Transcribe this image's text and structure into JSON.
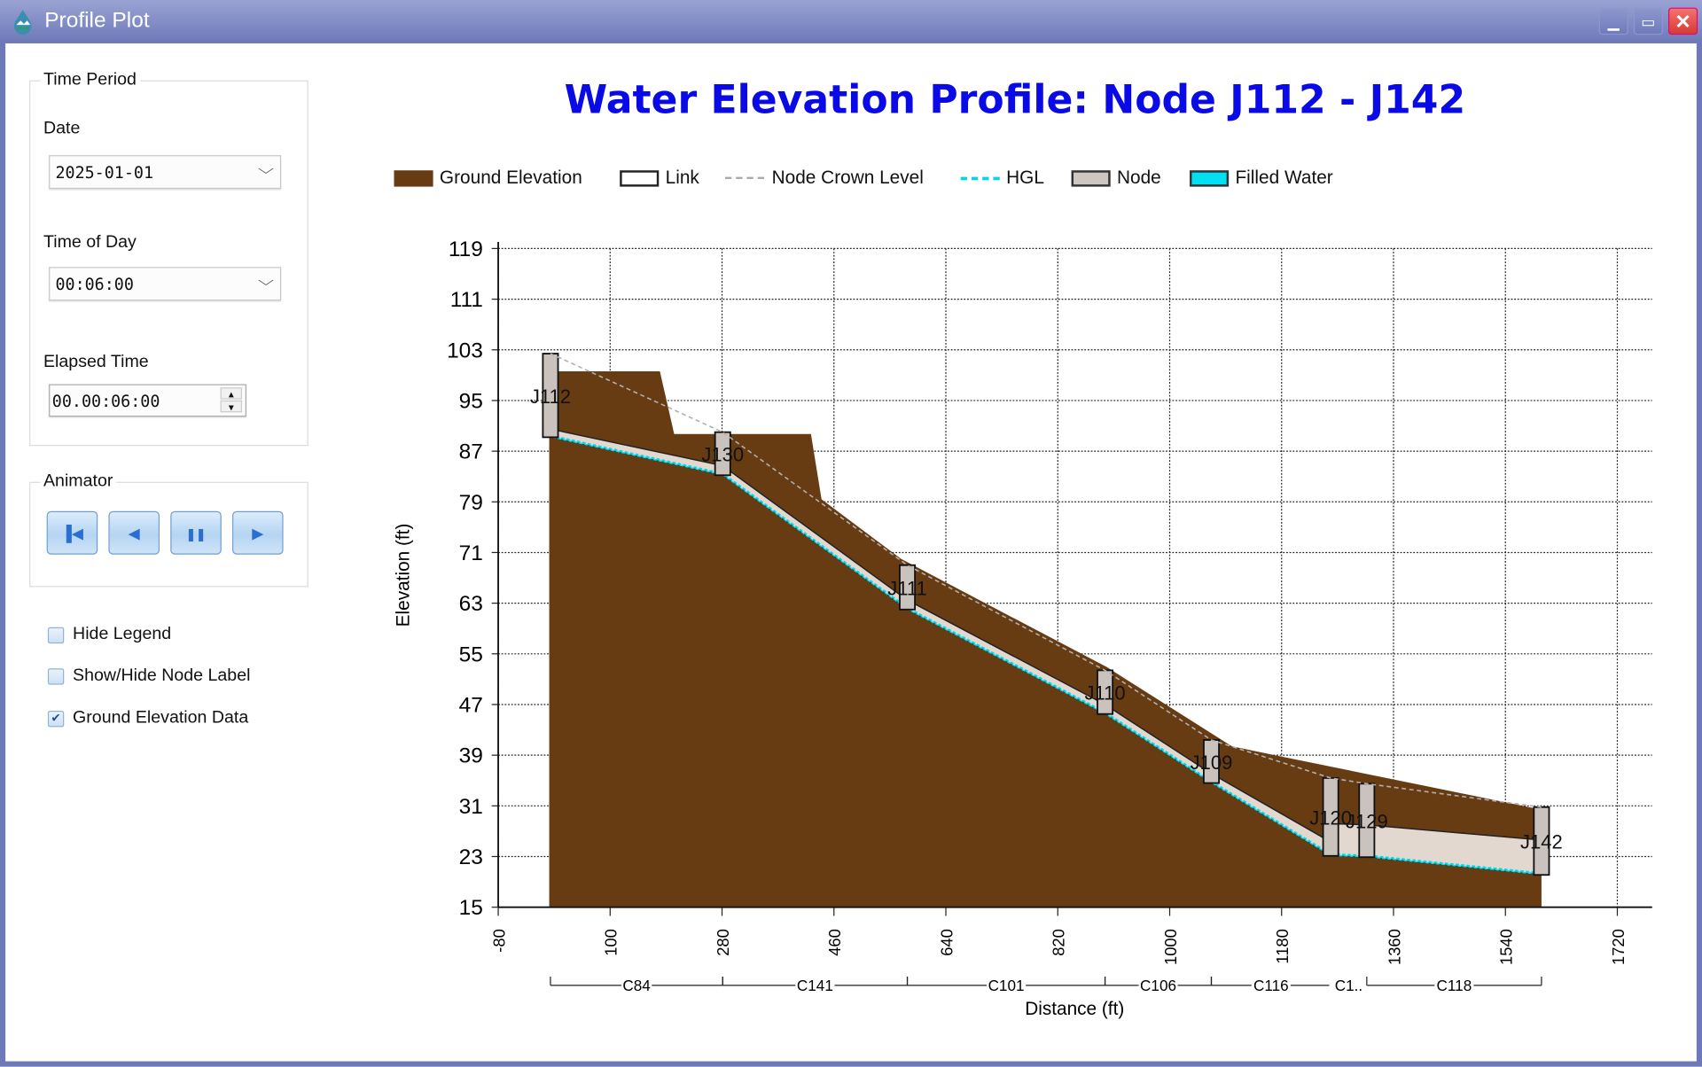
{
  "window": {
    "title": "Profile Plot",
    "minimize_icon": "minimize-icon",
    "maximize_icon": "maximize-icon",
    "close_icon": "close-icon"
  },
  "time_period": {
    "group_label": "Time Period",
    "date_label": "Date",
    "date_value": "2025-01-01",
    "time_of_day_label": "Time of Day",
    "time_of_day_value": "00:06:00",
    "elapsed_label": "Elapsed Time",
    "elapsed_value": "00.00:06:00"
  },
  "animator": {
    "group_label": "Animator",
    "buttons": [
      "skip-to-start",
      "step-back",
      "pause",
      "play"
    ]
  },
  "options": [
    {
      "label": "Hide Legend",
      "checked": false
    },
    {
      "label": "Show/Hide Node Label",
      "checked": false
    },
    {
      "label": "Ground Elevation Data",
      "checked": true
    }
  ],
  "colors": {
    "ground": "#673c13",
    "link": "#e2d8d0",
    "node": "#c9c2bd",
    "hgl": "#00d8e8",
    "crown": "#b0b0b0",
    "title": "#0a0ae6"
  },
  "chart_data": {
    "type": "area",
    "title": "Water Elevation Profile: Node J112 - J142",
    "xlabel": "Distance (ft)",
    "ylabel": "Elevation (ft)",
    "xlim": [
      -80,
      1720
    ],
    "ylim": [
      15,
      119
    ],
    "xticks": [
      -80,
      100,
      280,
      460,
      640,
      820,
      1000,
      1180,
      1360,
      1540,
      1720
    ],
    "yticks": [
      15,
      23,
      31,
      39,
      47,
      55,
      63,
      71,
      79,
      87,
      95,
      103,
      111,
      119
    ],
    "grid": true,
    "legend_position": "top",
    "legend": [
      "Ground Elevation",
      "Link",
      "Node Crown Level",
      "HGL",
      "Node",
      "Filled Water"
    ],
    "nodes": [
      {
        "name": "J112",
        "x": 4,
        "top": 102.4,
        "invert": 89.2
      },
      {
        "name": "J130",
        "x": 281,
        "top": 90.0,
        "invert": 83.2
      },
      {
        "name": "J111",
        "x": 578,
        "top": 69.0,
        "invert": 62.0
      },
      {
        "name": "J110",
        "x": 896,
        "top": 52.4,
        "invert": 45.5
      },
      {
        "name": "J109",
        "x": 1067,
        "top": 41.4,
        "invert": 34.6
      },
      {
        "name": "J120",
        "x": 1259,
        "top": 35.4,
        "invert": 23.1
      },
      {
        "name": "J129",
        "x": 1317,
        "top": 34.5,
        "invert": 22.9
      },
      {
        "name": "J142",
        "x": 1598,
        "top": 30.8,
        "invert": 20.1
      }
    ],
    "links": [
      {
        "name": "C84",
        "from": 0,
        "to": 1,
        "invert": [
          89.2,
          83.2
        ],
        "crown": [
          90.5,
          84.7
        ]
      },
      {
        "name": "C141",
        "from": 1,
        "to": 2,
        "invert": [
          83.2,
          62.0
        ],
        "crown": [
          84.7,
          63.5
        ]
      },
      {
        "name": "C101",
        "from": 2,
        "to": 3,
        "invert": [
          62.0,
          45.5
        ],
        "crown": [
          63.5,
          47.0
        ]
      },
      {
        "name": "C106",
        "from": 3,
        "to": 4,
        "invert": [
          45.5,
          34.6
        ],
        "crown": [
          47.0,
          36.1
        ]
      },
      {
        "name": "C116",
        "from": 4,
        "to": 5,
        "invert": [
          34.6,
          23.1
        ],
        "crown": [
          36.1,
          25.3
        ]
      },
      {
        "name": "C1..",
        "from": 5,
        "to": 6,
        "invert": [
          23.1,
          22.9
        ],
        "crown": [
          28.2,
          28.0
        ]
      },
      {
        "name": "C118",
        "from": 6,
        "to": 7,
        "invert": [
          22.9,
          20.1
        ],
        "crown": [
          28.0,
          25.6
        ]
      }
    ],
    "hgl": [
      89.4,
      83.4,
      62.2,
      45.7,
      34.8,
      23.3,
      23.1,
      20.3
    ],
    "ground": [
      [
        2,
        15
      ],
      [
        2,
        99.6
      ],
      [
        180,
        99.6
      ],
      [
        203,
        89.7
      ],
      [
        423,
        89.7
      ],
      [
        440,
        79.4
      ],
      [
        568,
        70.0
      ],
      [
        899,
        52.9
      ],
      [
        1100,
        40.4
      ],
      [
        1179,
        38.8
      ],
      [
        1598,
        30.4
      ],
      [
        1598,
        15
      ]
    ]
  }
}
